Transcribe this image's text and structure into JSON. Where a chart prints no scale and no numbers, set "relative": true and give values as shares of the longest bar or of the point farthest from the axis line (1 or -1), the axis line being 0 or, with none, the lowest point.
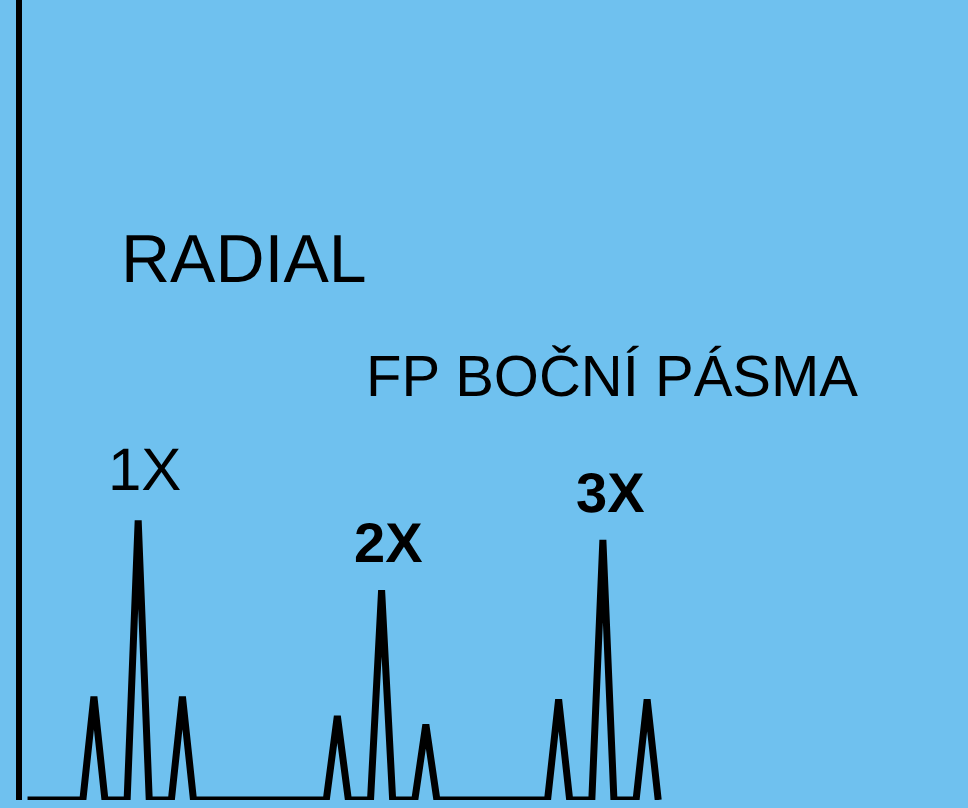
{
  "chart_data": {
    "type": "line",
    "title": "RADIAL",
    "subtitle": "FP BOČNÍ PÁSMA",
    "relative": true,
    "color": "#000000",
    "categories": [
      null,
      null,
      null,
      null,
      null,
      null,
      null,
      null,
      null,
      null,
      null,
      null,
      null,
      null,
      null,
      null,
      null,
      null,
      null,
      null,
      null,
      null,
      null,
      null,
      null,
      null,
      null,
      null,
      null,
      null,
      null,
      null,
      null,
      null,
      null,
      null,
      null,
      null,
      null,
      null,
      null,
      null,
      null,
      null,
      null,
      null,
      null,
      null,
      null,
      null,
      null,
      null,
      null,
      null,
      null,
      null,
      null,
      null
    ],
    "values": [
      0,
      0,
      0,
      0,
      0,
      0,
      0.37,
      0,
      0,
      0,
      1,
      0,
      0,
      0,
      0.37,
      0,
      0,
      0,
      0,
      0,
      0,
      0,
      0,
      0,
      0,
      0,
      0,
      0,
      0.3,
      0,
      0,
      0,
      0.75,
      0,
      0,
      0,
      0.27,
      0,
      0,
      0,
      0,
      0,
      0,
      0,
      0,
      0,
      0,
      0,
      0.36,
      0,
      0,
      0,
      0.93,
      0,
      0,
      0,
      0.36,
      0
    ],
    "annotations": [
      "1X",
      "2X",
      "3X"
    ],
    "marker": "none",
    "grid": false,
    "legend": false
  }
}
